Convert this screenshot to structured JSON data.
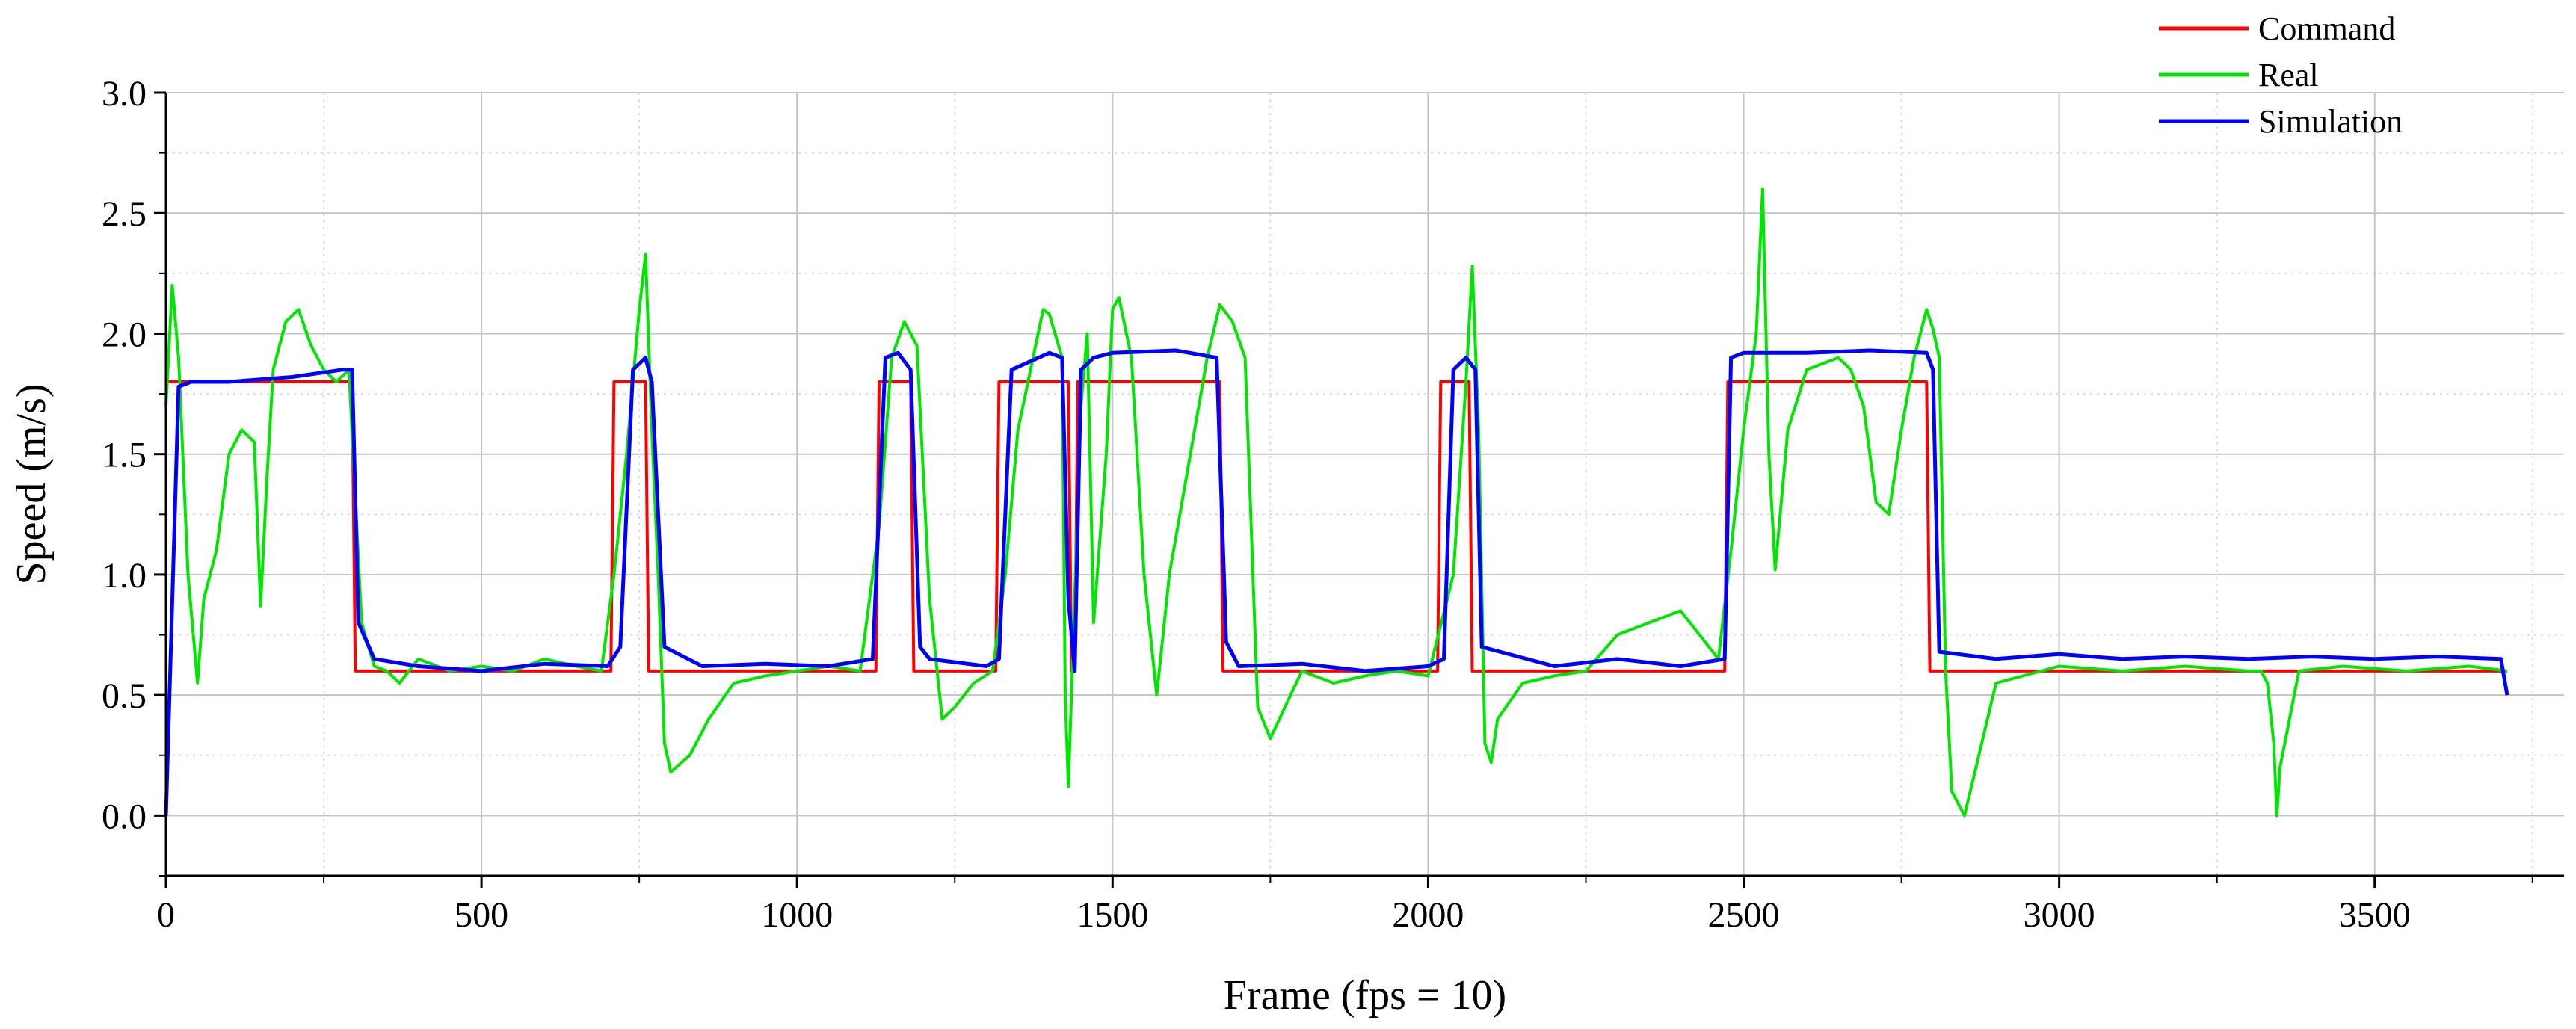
{
  "chart_data": {
    "type": "line",
    "title": "",
    "xlabel": "Frame (fps = 10)",
    "ylabel": "Speed (m/s)",
    "xlim": [
      0,
      3800
    ],
    "ylim": [
      -0.25,
      3.0
    ],
    "x_ticks": [
      0,
      500,
      1000,
      1500,
      2000,
      2500,
      3000,
      3500
    ],
    "y_ticks": [
      0.0,
      0.5,
      1.0,
      1.5,
      2.0,
      2.5,
      3.0
    ],
    "x_tick_labels": [
      "0",
      "500",
      "1000",
      "1500",
      "2000",
      "2500",
      "3000",
      "3500"
    ],
    "y_tick_labels": [
      "0.0",
      "0.5",
      "1.0",
      "1.5",
      "2.0",
      "2.5",
      "3.0"
    ],
    "grid": true,
    "legend_position": "top-right",
    "series": [
      {
        "name": "Command",
        "color": "#ff0000",
        "x": [
          0,
          295,
          300,
          705,
          710,
          760,
          765,
          1125,
          1130,
          1180,
          1185,
          1315,
          1320,
          1430,
          1435,
          1440,
          1445,
          1670,
          1675,
          2015,
          2020,
          2065,
          2070,
          2470,
          2475,
          2790,
          2795,
          3710
        ],
        "y": [
          1.8,
          1.8,
          0.6,
          0.6,
          1.8,
          1.8,
          0.6,
          0.6,
          1.8,
          1.8,
          0.6,
          0.6,
          1.8,
          1.8,
          0.6,
          0.6,
          1.8,
          1.8,
          0.6,
          0.6,
          1.8,
          1.8,
          0.6,
          0.6,
          1.8,
          1.8,
          0.6,
          0.6
        ]
      },
      {
        "name": "Real",
        "color": "#00e600",
        "x": [
          0,
          10,
          20,
          35,
          50,
          60,
          80,
          100,
          120,
          140,
          150,
          160,
          170,
          190,
          210,
          230,
          250,
          270,
          290,
          310,
          330,
          350,
          370,
          400,
          450,
          500,
          550,
          600,
          650,
          690,
          710,
          730,
          750,
          760,
          770,
          780,
          790,
          800,
          830,
          860,
          900,
          950,
          1000,
          1050,
          1100,
          1130,
          1150,
          1170,
          1190,
          1210,
          1230,
          1250,
          1280,
          1310,
          1330,
          1350,
          1370,
          1390,
          1400,
          1420,
          1425,
          1430,
          1440,
          1450,
          1460,
          1470,
          1490,
          1500,
          1510,
          1530,
          1550,
          1570,
          1590,
          1610,
          1630,
          1650,
          1670,
          1690,
          1710,
          1730,
          1750,
          1800,
          1850,
          1900,
          1950,
          2000,
          2040,
          2060,
          2070,
          2080,
          2090,
          2100,
          2110,
          2150,
          2200,
          2250,
          2300,
          2350,
          2400,
          2430,
          2460,
          2480,
          2500,
          2520,
          2530,
          2540,
          2550,
          2570,
          2600,
          2650,
          2670,
          2690,
          2710,
          2730,
          2750,
          2770,
          2790,
          2800,
          2810,
          2820,
          2830,
          2850,
          2900,
          3000,
          3100,
          3200,
          3300,
          3320,
          3330,
          3340,
          3345,
          3350,
          3380,
          3450,
          3550,
          3650,
          3710
        ],
        "y": [
          1.7,
          2.2,
          1.9,
          1.0,
          0.55,
          0.9,
          1.1,
          1.5,
          1.6,
          1.55,
          0.87,
          1.4,
          1.85,
          2.05,
          2.1,
          1.95,
          1.85,
          1.8,
          1.85,
          0.8,
          0.62,
          0.6,
          0.55,
          0.65,
          0.6,
          0.62,
          0.6,
          0.65,
          0.62,
          0.6,
          1.0,
          1.5,
          2.1,
          2.33,
          1.6,
          1.0,
          0.3,
          0.18,
          0.25,
          0.4,
          0.55,
          0.58,
          0.6,
          0.62,
          0.6,
          1.2,
          1.9,
          2.05,
          1.95,
          0.9,
          0.4,
          0.45,
          0.55,
          0.6,
          1.0,
          1.6,
          1.85,
          2.1,
          2.08,
          1.9,
          0.5,
          0.12,
          0.9,
          1.7,
          2.0,
          0.8,
          1.5,
          2.1,
          2.15,
          1.9,
          1.0,
          0.5,
          1.0,
          1.3,
          1.6,
          1.9,
          2.12,
          2.05,
          1.9,
          0.45,
          0.32,
          0.6,
          0.55,
          0.58,
          0.6,
          0.58,
          1.0,
          1.8,
          2.28,
          1.6,
          0.3,
          0.22,
          0.4,
          0.55,
          0.58,
          0.6,
          0.75,
          0.8,
          0.85,
          0.75,
          0.65,
          1.1,
          1.6,
          2.0,
          2.6,
          1.5,
          1.02,
          1.6,
          1.85,
          1.9,
          1.85,
          1.7,
          1.3,
          1.25,
          1.6,
          1.9,
          2.1,
          2.02,
          1.9,
          0.6,
          0.1,
          0.0,
          0.55,
          0.62,
          0.6,
          0.62,
          0.6,
          0.6,
          0.55,
          0.3,
          0.0,
          0.2,
          0.6,
          0.62,
          0.6,
          0.62,
          0.6
        ]
      },
      {
        "name": "Simulation",
        "color": "#0000ff",
        "x": [
          0,
          20,
          40,
          100,
          200,
          280,
          295,
          305,
          330,
          400,
          500,
          600,
          700,
          720,
          740,
          760,
          770,
          790,
          850,
          950,
          1050,
          1120,
          1140,
          1160,
          1180,
          1195,
          1210,
          1300,
          1320,
          1340,
          1400,
          1420,
          1430,
          1440,
          1450,
          1470,
          1500,
          1600,
          1665,
          1680,
          1700,
          1800,
          1900,
          2000,
          2025,
          2040,
          2060,
          2075,
          2085,
          2200,
          2300,
          2400,
          2470,
          2480,
          2500,
          2600,
          2700,
          2790,
          2800,
          2810,
          2900,
          3000,
          3100,
          3200,
          3300,
          3400,
          3500,
          3600,
          3700,
          3710
        ],
        "y": [
          0.0,
          1.78,
          1.8,
          1.8,
          1.82,
          1.85,
          1.85,
          0.8,
          0.65,
          0.62,
          0.6,
          0.63,
          0.62,
          0.7,
          1.85,
          1.9,
          1.8,
          0.7,
          0.62,
          0.63,
          0.62,
          0.65,
          1.9,
          1.92,
          1.85,
          0.7,
          0.65,
          0.62,
          0.65,
          1.85,
          1.92,
          1.9,
          0.9,
          0.6,
          1.85,
          1.9,
          1.92,
          1.93,
          1.9,
          0.72,
          0.62,
          0.63,
          0.6,
          0.62,
          0.65,
          1.85,
          1.9,
          1.85,
          0.7,
          0.62,
          0.65,
          0.62,
          0.65,
          1.9,
          1.92,
          1.92,
          1.93,
          1.92,
          1.85,
          0.68,
          0.65,
          0.67,
          0.65,
          0.66,
          0.65,
          0.66,
          0.65,
          0.66,
          0.65,
          0.5
        ]
      }
    ]
  }
}
